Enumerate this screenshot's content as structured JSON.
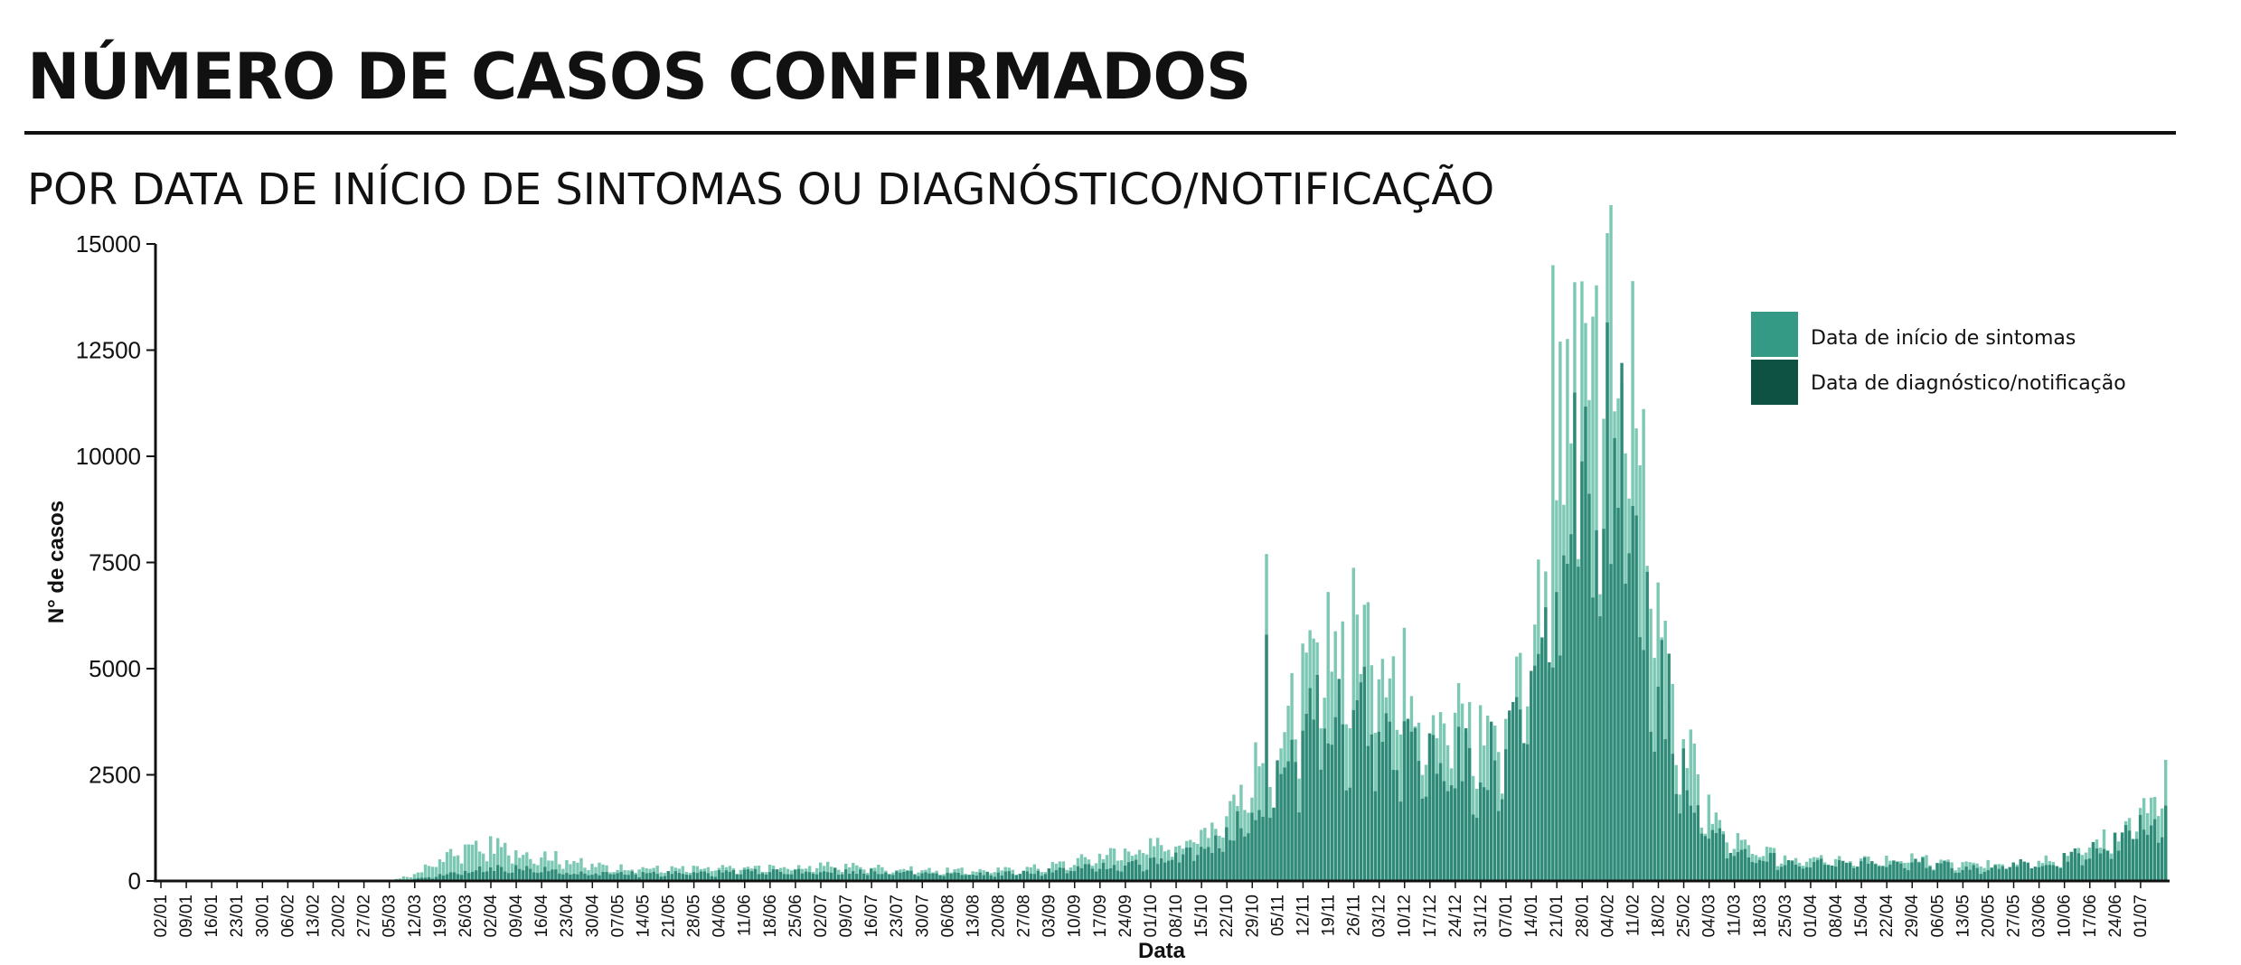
{
  "title": "NÚMERO DE CASOS CONFIRMADOS",
  "subtitle": "POR DATA DE INÍCIO DE SINTOMAS OU DIAGNÓSTICO/NOTIFICAÇÃO",
  "colors": {
    "symptom_onset": "#7dc8b4",
    "diagnosis": "#2f8a78",
    "legend_symptom": "#349a86",
    "legend_diagnosis": "#0e5244",
    "axis": "#111111"
  },
  "chart_data": {
    "type": "bar",
    "xlabel": "Data",
    "ylabel": "N° de casos",
    "ylim": [
      0,
      15000
    ],
    "yticks": [
      0,
      2500,
      5000,
      7500,
      10000,
      12500,
      15000
    ],
    "x_start": "2020-01-02",
    "x_end": "2021-07-08",
    "xtick_labels": [
      "02/01",
      "09/01",
      "16/01",
      "23/01",
      "30/01",
      "06/02",
      "13/02",
      "20/02",
      "27/02",
      "05/03",
      "12/03",
      "19/03",
      "26/03",
      "02/04",
      "09/04",
      "16/04",
      "23/04",
      "30/04",
      "07/05",
      "14/05",
      "21/05",
      "28/05",
      "04/06",
      "11/06",
      "18/06",
      "25/06",
      "02/07",
      "09/07",
      "16/07",
      "23/07",
      "30/07",
      "06/08",
      "13/08",
      "20/08",
      "27/08",
      "03/09",
      "10/09",
      "17/09",
      "24/09",
      "01/10",
      "08/10",
      "15/10",
      "22/10",
      "29/10",
      "05/11",
      "12/11",
      "19/11",
      "26/11",
      "03/12",
      "10/12",
      "17/12",
      "24/12",
      "31/12",
      "07/01",
      "14/01",
      "21/01",
      "28/01",
      "04/02",
      "11/02",
      "18/02",
      "25/02",
      "04/03",
      "11/03",
      "18/03",
      "25/03",
      "01/04",
      "08/04",
      "15/04",
      "22/04",
      "29/04",
      "06/05",
      "13/05",
      "20/05",
      "27/05",
      "03/06",
      "10/06",
      "17/06",
      "24/06",
      "01/07"
    ],
    "legend_position": "top-right",
    "series": [
      {
        "name": "Data de início de sintomas",
        "weekly_points": [
          [
            0,
            0
          ],
          [
            9,
            0
          ],
          [
            10,
            150
          ],
          [
            11,
            500
          ],
          [
            12,
            750
          ],
          [
            13,
            800
          ],
          [
            14,
            700
          ],
          [
            15,
            600
          ],
          [
            16,
            500
          ],
          [
            17,
            350
          ],
          [
            18,
            320
          ],
          [
            19,
            300
          ],
          [
            20,
            280
          ],
          [
            21,
            280
          ],
          [
            22,
            290
          ],
          [
            23,
            300
          ],
          [
            24,
            310
          ],
          [
            25,
            330
          ],
          [
            26,
            340
          ],
          [
            27,
            350
          ],
          [
            28,
            320
          ],
          [
            29,
            280
          ],
          [
            30,
            250
          ],
          [
            31,
            240
          ],
          [
            32,
            240
          ],
          [
            33,
            250
          ],
          [
            34,
            280
          ],
          [
            35,
            340
          ],
          [
            36,
            450
          ],
          [
            37,
            600
          ],
          [
            38,
            700
          ],
          [
            39,
            800
          ],
          [
            40,
            900
          ],
          [
            41,
            1100
          ],
          [
            42,
            1700
          ],
          [
            43,
            2400
          ],
          [
            44,
            3200
          ],
          [
            45,
            4300
          ],
          [
            46,
            5200
          ],
          [
            47,
            5800
          ],
          [
            48,
            5700
          ],
          [
            49,
            4700
          ],
          [
            50,
            4200
          ],
          [
            51,
            3800
          ],
          [
            52,
            3500
          ],
          [
            53,
            3700
          ],
          [
            54,
            5500
          ],
          [
            55,
            8900
          ],
          [
            56,
            10800
          ],
          [
            57,
            12800
          ],
          [
            58,
            11500
          ],
          [
            59,
            6500
          ],
          [
            60,
            3200
          ],
          [
            61,
            1600
          ],
          [
            62,
            900
          ],
          [
            63,
            650
          ],
          [
            64,
            550
          ],
          [
            65,
            500
          ],
          [
            66,
            450
          ],
          [
            67,
            450
          ],
          [
            68,
            500
          ],
          [
            69,
            500
          ],
          [
            70,
            450
          ],
          [
            71,
            380
          ],
          [
            72,
            380
          ],
          [
            73,
            420
          ],
          [
            74,
            500
          ],
          [
            75,
            600
          ],
          [
            76,
            800
          ],
          [
            77,
            1100
          ],
          [
            78,
            1500
          ],
          [
            79,
            2100
          ],
          [
            80,
            2300
          ]
        ],
        "spikes": [
          {
            "date": "2020-11-02",
            "value": 7700
          },
          {
            "date": "2021-01-20",
            "value": 14500
          },
          {
            "date": "2021-01-22",
            "value": 12700
          },
          {
            "date": "2021-01-26",
            "value": 14100
          },
          {
            "date": "2021-07-08",
            "value": 2850
          }
        ]
      },
      {
        "name": "Data de diagnóstico/notificação",
        "weekly_points": [
          [
            0,
            0
          ],
          [
            9,
            0
          ],
          [
            10,
            40
          ],
          [
            11,
            120
          ],
          [
            12,
            220
          ],
          [
            13,
            280
          ],
          [
            14,
            300
          ],
          [
            15,
            250
          ],
          [
            16,
            200
          ],
          [
            17,
            180
          ],
          [
            18,
            170
          ],
          [
            19,
            170
          ],
          [
            20,
            180
          ],
          [
            21,
            180
          ],
          [
            22,
            190
          ],
          [
            23,
            200
          ],
          [
            24,
            210
          ],
          [
            25,
            220
          ],
          [
            26,
            230
          ],
          [
            27,
            230
          ],
          [
            28,
            210
          ],
          [
            29,
            190
          ],
          [
            30,
            170
          ],
          [
            31,
            160
          ],
          [
            32,
            160
          ],
          [
            33,
            170
          ],
          [
            34,
            190
          ],
          [
            35,
            230
          ],
          [
            36,
            280
          ],
          [
            37,
            330
          ],
          [
            38,
            380
          ],
          [
            39,
            430
          ],
          [
            40,
            550
          ],
          [
            41,
            700
          ],
          [
            42,
            1100
          ],
          [
            43,
            1600
          ],
          [
            44,
            2400
          ],
          [
            45,
            3300
          ],
          [
            46,
            4000
          ],
          [
            47,
            4000
          ],
          [
            48,
            3600
          ],
          [
            49,
            3100
          ],
          [
            50,
            2900
          ],
          [
            51,
            2700
          ],
          [
            52,
            2600
          ],
          [
            53,
            2900
          ],
          [
            54,
            4300
          ],
          [
            55,
            6400
          ],
          [
            56,
            8200
          ],
          [
            57,
            10000
          ],
          [
            58,
            8500
          ],
          [
            59,
            5000
          ],
          [
            60,
            2500
          ],
          [
            61,
            1300
          ],
          [
            62,
            750
          ],
          [
            63,
            550
          ],
          [
            64,
            450
          ],
          [
            65,
            420
          ],
          [
            66,
            400
          ],
          [
            67,
            400
          ],
          [
            68,
            420
          ],
          [
            69,
            420
          ],
          [
            70,
            380
          ],
          [
            71,
            320
          ],
          [
            72,
            320
          ],
          [
            73,
            360
          ],
          [
            74,
            420
          ],
          [
            75,
            500
          ],
          [
            76,
            650
          ],
          [
            77,
            900
          ],
          [
            78,
            1200
          ],
          [
            79,
            1600
          ],
          [
            80,
            1800
          ]
        ],
        "spikes": [
          {
            "date": "2020-11-02",
            "value": 5800
          },
          {
            "date": "2021-01-26",
            "value": 11500
          },
          {
            "date": "2021-03-08",
            "value": 1100
          }
        ]
      }
    ]
  }
}
